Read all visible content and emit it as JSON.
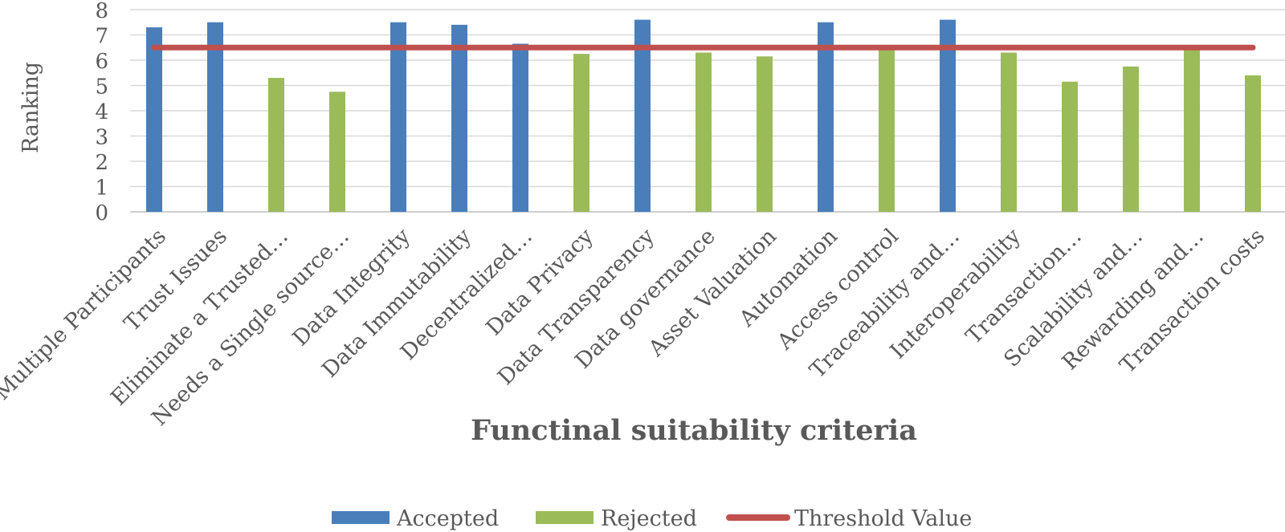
{
  "chart_data": {
    "type": "bar",
    "title": "",
    "xlabel": "Functinal suitability criteria",
    "ylabel": "Ranking",
    "ylim": [
      0,
      8
    ],
    "yticks": [
      0,
      1,
      2,
      3,
      4,
      5,
      6,
      7,
      8
    ],
    "grid": true,
    "legend_position": "bottom",
    "categories": [
      "Multiple Participants",
      "Trust Issues",
      "Eliminate a Trusted…",
      "Needs a Single source…",
      "Data Integrity",
      "Data Immutability",
      "Decentralized…",
      "Data Privacy",
      "Data Transparency",
      "Data governance",
      "Asset Valuation",
      "Automation",
      "Access control",
      "Traceability and…",
      "Interoperability",
      "Transaction…",
      "Scalability and…",
      "Rewarding and…",
      "Transaction costs"
    ],
    "series": [
      {
        "name": "Accepted",
        "type": "bar",
        "color": "#4a7ebb",
        "values": [
          7.3,
          7.5,
          null,
          null,
          7.5,
          7.4,
          6.65,
          null,
          7.6,
          null,
          null,
          7.5,
          null,
          7.6,
          null,
          null,
          null,
          null,
          null
        ]
      },
      {
        "name": "Rejected",
        "type": "bar",
        "color": "#9bbb59",
        "values": [
          null,
          null,
          5.3,
          4.75,
          null,
          null,
          null,
          6.25,
          null,
          6.3,
          6.15,
          null,
          6.4,
          null,
          6.3,
          5.15,
          5.75,
          6.45,
          5.4
        ]
      },
      {
        "name": "Threshold Value",
        "type": "line",
        "color": "#c0504d",
        "value": 6.5
      }
    ]
  }
}
